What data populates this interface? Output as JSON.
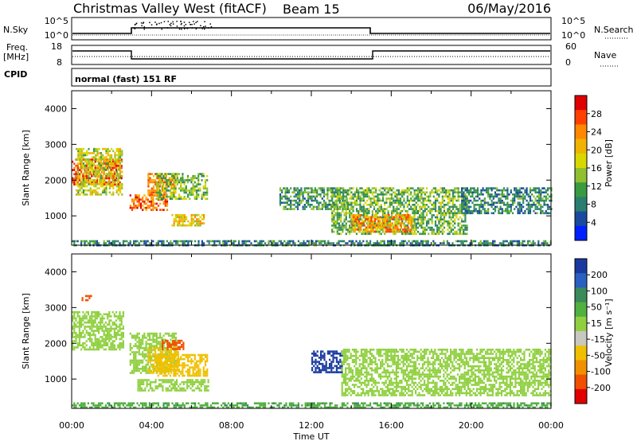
{
  "header": {
    "title": "Christmas Valley West (fitACF)",
    "beam": "Beam 15",
    "date": "06/May/2016"
  },
  "strip_labels": {
    "nsky": "N.Sky",
    "nsearch": "N.Search",
    "freq_line1": "Freq.",
    "freq_line2": "[MHz]",
    "nave": "Nave",
    "cpid": "CPID",
    "cpid_value": "normal (fast) 151 RF",
    "noise_left_ticks": [
      "10^5",
      "10^0"
    ],
    "noise_right_ticks": [
      "10^5",
      "10^0"
    ],
    "freq_left_ticks": [
      "18",
      "8"
    ],
    "freq_right_ticks": [
      "60",
      "0"
    ]
  },
  "chart_data": [
    {
      "type": "heatmap",
      "name": "power",
      "ylabel": "Slant Range [km]",
      "xlabel": "Time UT",
      "ylim": [
        180,
        4500
      ],
      "xlim": [
        0,
        24
      ],
      "yticks": [
        1000,
        2000,
        3000,
        4000
      ],
      "xticks": [
        "00:00",
        "04:00",
        "08:00",
        "12:00",
        "16:00",
        "20:00",
        "00:00"
      ],
      "colorbar": {
        "label": "Power [dB]",
        "ticks": [
          "28",
          "24",
          "20",
          "16",
          "12",
          "8",
          "4"
        ],
        "colors": [
          "#e00000",
          "#ff4000",
          "#ff8800",
          "#f0b400",
          "#d8d800",
          "#90c030",
          "#3a9a40",
          "#2a7e70",
          "#1a4aa0",
          "#0020ff"
        ]
      },
      "regions": [
        {
          "t0": 0.0,
          "t1": 2.5,
          "r0": 1900,
          "r1": 2600,
          "level": 26
        },
        {
          "t0": 0.2,
          "t1": 2.5,
          "r0": 1600,
          "r1": 2900,
          "level": 16
        },
        {
          "t0": 2.9,
          "t1": 4.8,
          "r0": 1150,
          "r1": 1600,
          "level": 24
        },
        {
          "t0": 3.8,
          "t1": 5.2,
          "r0": 1600,
          "r1": 2200,
          "level": 22
        },
        {
          "t0": 4.2,
          "t1": 6.8,
          "r0": 1500,
          "r1": 2200,
          "level": 12
        },
        {
          "t0": 5.0,
          "t1": 6.6,
          "r0": 750,
          "r1": 1050,
          "level": 18
        },
        {
          "t0": 10.4,
          "t1": 13.8,
          "r0": 1200,
          "r1": 1800,
          "level": 10
        },
        {
          "t0": 13.0,
          "t1": 19.8,
          "r0": 500,
          "r1": 1800,
          "level": 12
        },
        {
          "t0": 14.0,
          "t1": 17.0,
          "r0": 550,
          "r1": 1050,
          "level": 22
        },
        {
          "t0": 19.5,
          "t1": 24.0,
          "r0": 1100,
          "r1": 1800,
          "level": 8
        },
        {
          "t0": 0.0,
          "t1": 24.0,
          "r0": 180,
          "r1": 320,
          "level": 8
        }
      ]
    },
    {
      "type": "heatmap",
      "name": "velocity",
      "ylabel": "Slant Range [km]",
      "xlabel": "Time UT",
      "ylim": [
        180,
        4500
      ],
      "xlim": [
        0,
        24
      ],
      "yticks": [
        1000,
        2000,
        3000,
        4000
      ],
      "xticks": [
        "00:00",
        "04:00",
        "08:00",
        "12:00",
        "16:00",
        "20:00",
        "00:00"
      ],
      "colorbar": {
        "label": "Velocity [m s⁻¹]",
        "ticks": [
          "200",
          "100",
          "50",
          "15",
          "-15",
          "-50",
          "-100",
          "-200"
        ],
        "colors": [
          "#1a3aa0",
          "#2a60c0",
          "#3a8a5a",
          "#50b040",
          "#90d040",
          "#c8c8c0",
          "#f0c000",
          "#f09000",
          "#f05000",
          "#e00000"
        ]
      },
      "regions": [
        {
          "t0": 0.0,
          "t1": 2.6,
          "r0": 1800,
          "r1": 2900,
          "level": 0
        },
        {
          "t0": 2.9,
          "t1": 5.2,
          "r0": 1150,
          "r1": 2300,
          "level": 0
        },
        {
          "t0": 3.8,
          "t1": 5.3,
          "r0": 1150,
          "r1": 1900,
          "level": -60
        },
        {
          "t0": 4.2,
          "t1": 6.8,
          "r0": 1100,
          "r1": 1700,
          "level": -60
        },
        {
          "t0": 4.5,
          "t1": 5.6,
          "r0": 1850,
          "r1": 2100,
          "level": -200
        },
        {
          "t0": 0.5,
          "t1": 1.0,
          "r0": 3200,
          "r1": 3350,
          "level": -200
        },
        {
          "t0": 3.2,
          "t1": 6.8,
          "r0": 700,
          "r1": 1000,
          "level": 0
        },
        {
          "t0": 12.0,
          "t1": 13.5,
          "r0": 1200,
          "r1": 1800,
          "level": 200
        },
        {
          "t0": 13.5,
          "t1": 24.0,
          "r0": 550,
          "r1": 1850,
          "level": 0
        },
        {
          "t0": 0.0,
          "t1": 24.0,
          "r0": 180,
          "r1": 350,
          "level": 30
        }
      ]
    }
  ]
}
